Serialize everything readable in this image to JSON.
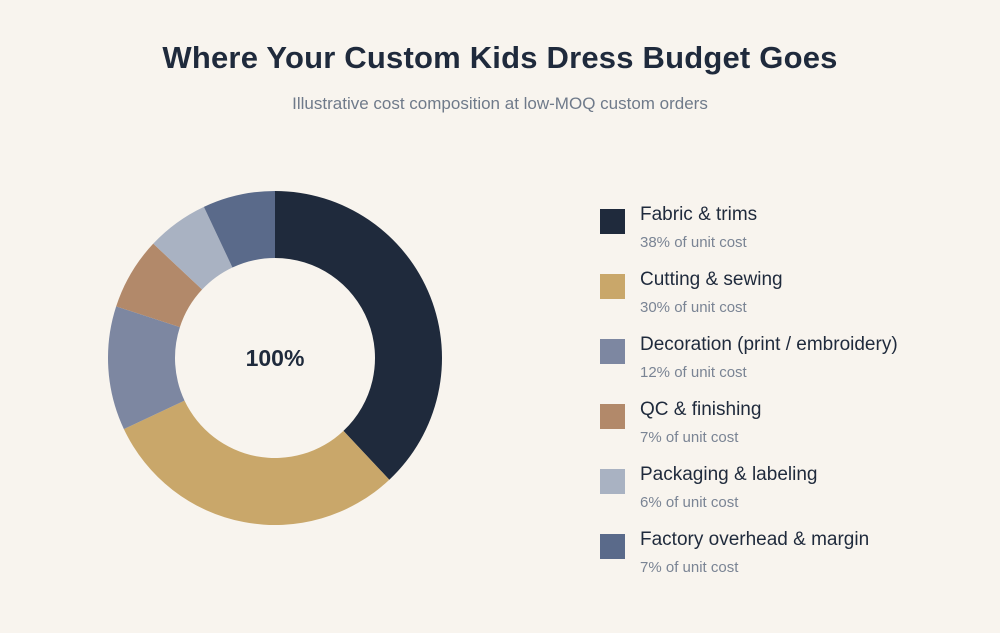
{
  "chart_data": {
    "type": "pie",
    "title": "Where Your Custom Kids Dress Budget Goes",
    "subtitle": "Illustrative cost composition at low-MOQ custom orders",
    "center_label": "100%",
    "legend_position": "right",
    "slices": [
      {
        "label": "Fabric & trims",
        "value": 38,
        "color": "#1f2a3c",
        "detail": "38% of unit cost"
      },
      {
        "label": "Cutting & sewing",
        "value": 30,
        "color": "#c9a76a",
        "detail": "30% of unit cost"
      },
      {
        "label": "Decoration (print / embroidery)",
        "value": 12,
        "color": "#7d87a1",
        "detail": "12% of unit cost"
      },
      {
        "label": "QC & finishing",
        "value": 7,
        "color": "#b2896a",
        "detail": "7% of unit cost"
      },
      {
        "label": "Packaging & labeling",
        "value": 6,
        "color": "#a9b2c2",
        "detail": "6% of unit cost"
      },
      {
        "label": "Factory overhead & margin",
        "value": 7,
        "color": "#5a6a8a",
        "detail": "7% of unit cost"
      }
    ]
  }
}
